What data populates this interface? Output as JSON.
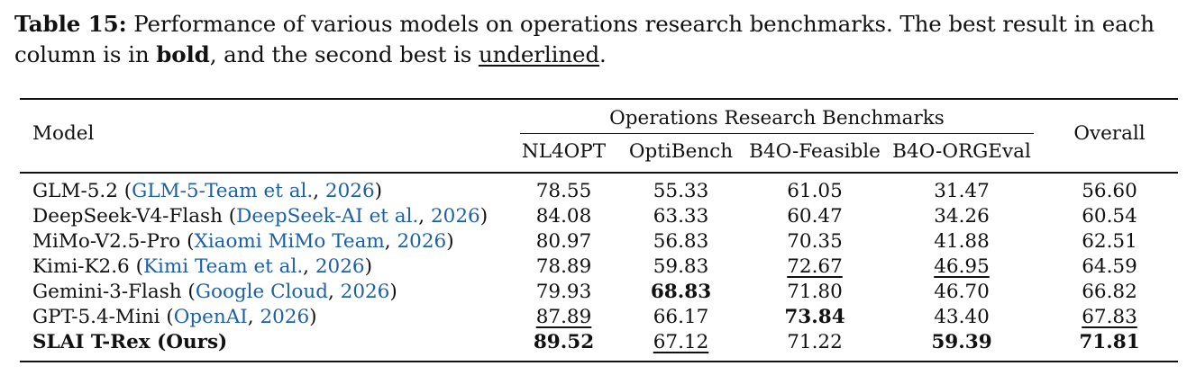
{
  "caption": {
    "label": "Table 15:",
    "text_part1": " Performance of various models on operations research benchmarks. The best result in each column is in ",
    "bold_word": "bold",
    "text_part2": ", and the second best is ",
    "underlined_word": "underlined",
    "text_part3": "."
  },
  "table": {
    "model_header": "Model",
    "group_header": "Operations Research Benchmarks",
    "overall_header": "Overall",
    "columns": [
      "NL4OPT",
      "OptiBench",
      "B4O-Feasible",
      "B4O-ORGEval"
    ],
    "rows": [
      {
        "name": "GLM-5.2",
        "open": " (",
        "cite_author": "GLM-5-Team et al.",
        "sep": ", ",
        "cite_year": "2026",
        "close": ")",
        "bold_name": false,
        "values": [
          "78.55",
          "55.33",
          "61.05",
          "31.47",
          "56.60"
        ],
        "bold": [
          false,
          false,
          false,
          false,
          false
        ],
        "underline": [
          false,
          false,
          false,
          false,
          false
        ]
      },
      {
        "name": "DeepSeek-V4-Flash",
        "open": " (",
        "cite_author": "DeepSeek-AI et al.",
        "sep": ", ",
        "cite_year": "2026",
        "close": ")",
        "bold_name": false,
        "values": [
          "84.08",
          "63.33",
          "60.47",
          "34.26",
          "60.54"
        ],
        "bold": [
          false,
          false,
          false,
          false,
          false
        ],
        "underline": [
          false,
          false,
          false,
          false,
          false
        ]
      },
      {
        "name": "MiMo-V2.5-Pro",
        "open": " (",
        "cite_author": "Xiaomi MiMo Team",
        "sep": ", ",
        "cite_year": "2026",
        "close": ")",
        "bold_name": false,
        "values": [
          "80.97",
          "56.83",
          "70.35",
          "41.88",
          "62.51"
        ],
        "bold": [
          false,
          false,
          false,
          false,
          false
        ],
        "underline": [
          false,
          false,
          false,
          false,
          false
        ]
      },
      {
        "name": "Kimi-K2.6",
        "open": " (",
        "cite_author": "Kimi Team et al.",
        "sep": ", ",
        "cite_year": "2026",
        "close": ")",
        "bold_name": false,
        "values": [
          "78.89",
          "59.83",
          "72.67",
          "46.95",
          "64.59"
        ],
        "bold": [
          false,
          false,
          false,
          false,
          false
        ],
        "underline": [
          false,
          false,
          true,
          true,
          false
        ]
      },
      {
        "name": "Gemini-3-Flash",
        "open": " (",
        "cite_author": "Google Cloud",
        "sep": ", ",
        "cite_year": "2026",
        "close": ")",
        "bold_name": false,
        "values": [
          "79.93",
          "68.83",
          "71.80",
          "46.70",
          "66.82"
        ],
        "bold": [
          false,
          true,
          false,
          false,
          false
        ],
        "underline": [
          false,
          false,
          false,
          false,
          false
        ]
      },
      {
        "name": "GPT-5.4-Mini",
        "open": " (",
        "cite_author": "OpenAI",
        "sep": ", ",
        "cite_year": "2026",
        "close": ")",
        "bold_name": false,
        "values": [
          "87.89",
          "66.17",
          "73.84",
          "43.40",
          "67.83"
        ],
        "bold": [
          false,
          false,
          true,
          false,
          false
        ],
        "underline": [
          true,
          false,
          false,
          false,
          true
        ]
      },
      {
        "name": "SLAI T-Rex (Ours)",
        "open": "",
        "cite_author": "",
        "sep": "",
        "cite_year": "",
        "close": "",
        "bold_name": true,
        "values": [
          "89.52",
          "67.12",
          "71.22",
          "59.39",
          "71.81"
        ],
        "bold": [
          true,
          false,
          false,
          true,
          true
        ],
        "underline": [
          false,
          true,
          false,
          false,
          false
        ]
      }
    ]
  },
  "colors": {
    "citation": "#1d60a6",
    "text": "#111111"
  }
}
